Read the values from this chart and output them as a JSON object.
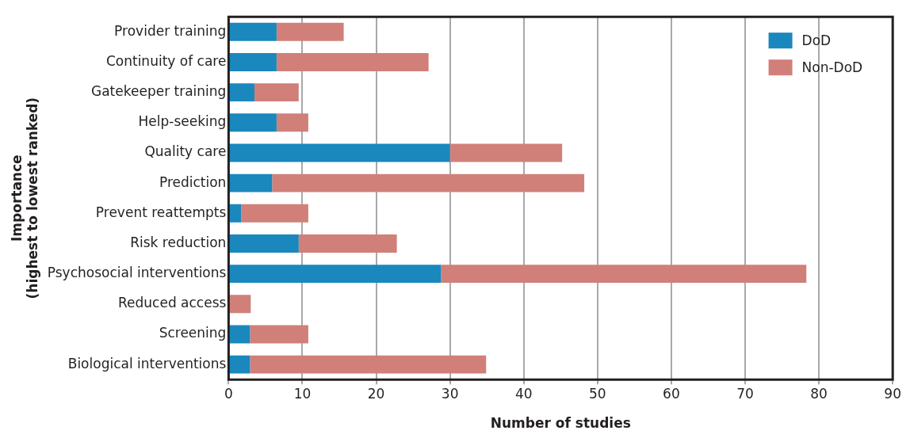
{
  "chart_data": {
    "type": "bar",
    "orientation": "horizontal",
    "stacked": true,
    "xlabel": "Number of studies",
    "ylabel": "Importance\n(highest to lowest ranked)",
    "categories": [
      "Provider training",
      "Continuity of care",
      "Gatekeeper training",
      "Help-seeking",
      "Quality care",
      "Prediction",
      "Prevent reattempts",
      "Risk reduction",
      "Psychosocial interventions",
      "Reduced access",
      "Screening",
      "Biological interventions"
    ],
    "series": [
      {
        "name": "DoD",
        "color": "#1a87bd",
        "values": [
          6.5,
          6.5,
          3.5,
          6.5,
          30,
          5.9,
          1.7,
          9.5,
          28.8,
          0,
          2.9,
          2.9
        ]
      },
      {
        "name": "Non-DoD",
        "color": "#d08079",
        "values": [
          9.1,
          20.6,
          6.0,
          4.3,
          15.2,
          42.3,
          9.1,
          13.3,
          49.5,
          3.0,
          7.9,
          32.0
        ]
      }
    ],
    "xlim": [
      0,
      90
    ],
    "xticks": [
      0,
      10,
      20,
      30,
      40,
      50,
      60,
      70,
      80,
      90
    ],
    "grid": "x",
    "legend": "top right"
  }
}
